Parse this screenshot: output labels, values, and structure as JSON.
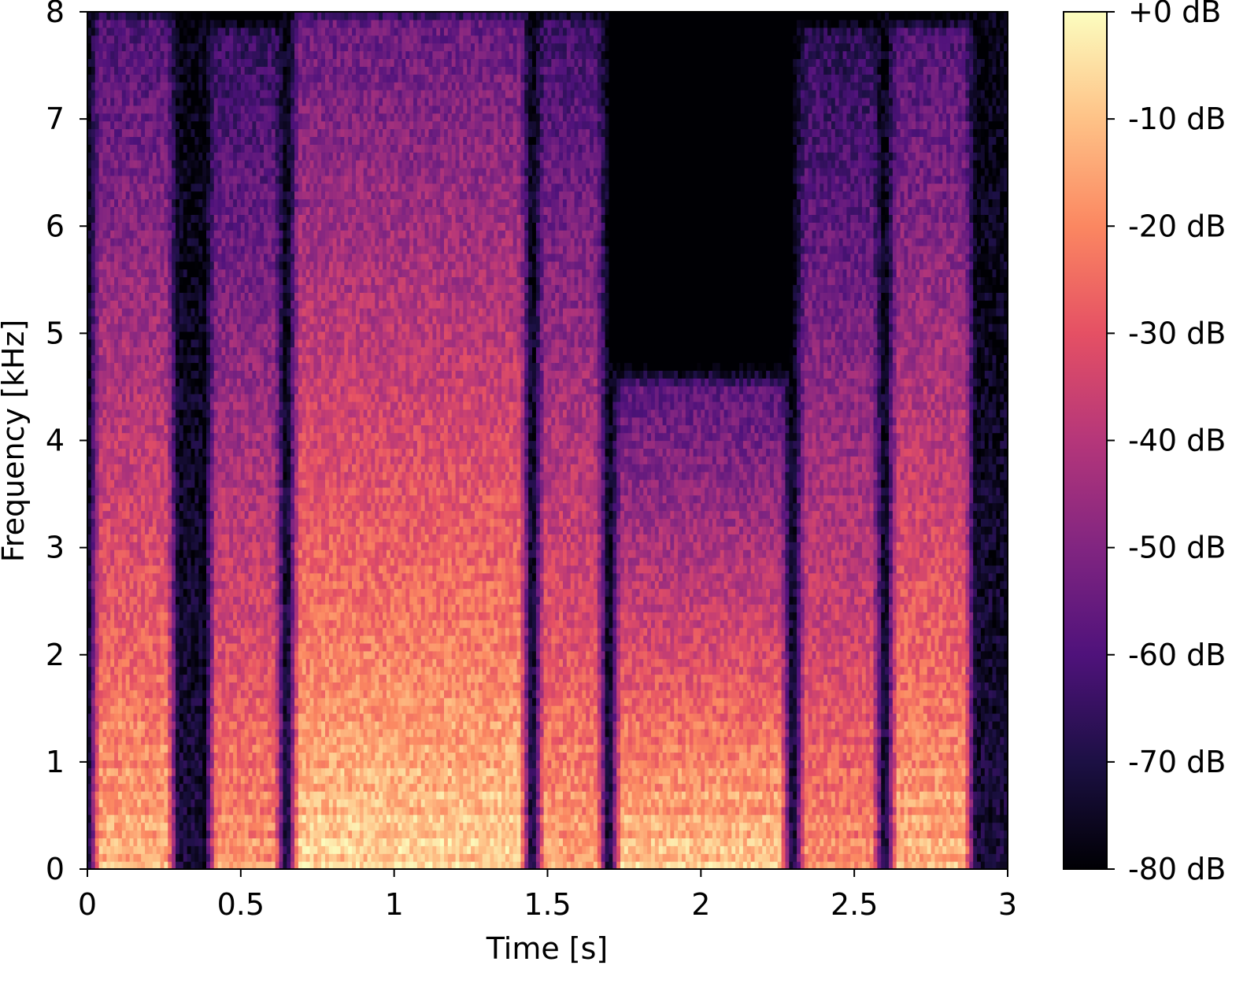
{
  "chart_data": {
    "type": "heatmap",
    "title": "",
    "xlabel": "Time [s]",
    "ylabel": "Frequency [kHz]",
    "xlim": [
      0,
      3
    ],
    "ylim": [
      0,
      8
    ],
    "x_ticks": [
      0,
      0.5,
      1,
      1.5,
      2,
      2.5,
      3
    ],
    "x_tick_labels": [
      "0",
      "0.5",
      "1",
      "1.5",
      "2",
      "2.5",
      "3"
    ],
    "y_ticks": [
      0,
      1,
      2,
      3,
      4,
      5,
      6,
      7,
      8
    ],
    "y_tick_labels": [
      "0",
      "1",
      "2",
      "3",
      "4",
      "5",
      "6",
      "7",
      "8"
    ],
    "colormap": "magma",
    "colorbar": {
      "range_db": [
        -80,
        0
      ],
      "ticks": [
        0,
        -10,
        -20,
        -30,
        -40,
        -50,
        -60,
        -70,
        -80
      ],
      "tick_labels": [
        "+0 dB",
        "-10 dB",
        "-20 dB",
        "-30 dB",
        "-40 dB",
        "-50 dB",
        "-60 dB",
        "-70 dB",
        "-80 dB"
      ]
    },
    "spectrogram_description_segments": [
      {
        "t_start": 0.0,
        "t_end": 0.3,
        "max_freq_khz": 7.9,
        "peak_db": -15
      },
      {
        "t_start": 0.38,
        "t_end": 0.65,
        "max_freq_khz": 7.8,
        "peak_db": -20
      },
      {
        "t_start": 0.65,
        "t_end": 1.45,
        "max_freq_khz": 7.9,
        "peak_db": -10
      },
      {
        "t_start": 1.45,
        "t_end": 1.7,
        "max_freq_khz": 7.9,
        "peak_db": -18
      },
      {
        "t_start": 1.7,
        "t_end": 2.3,
        "max_freq_khz": 4.5,
        "peak_db": -12
      },
      {
        "t_start": 2.3,
        "t_end": 2.6,
        "max_freq_khz": 7.8,
        "peak_db": -22
      },
      {
        "t_start": 2.6,
        "t_end": 2.9,
        "max_freq_khz": 7.8,
        "peak_db": -15
      }
    ]
  }
}
